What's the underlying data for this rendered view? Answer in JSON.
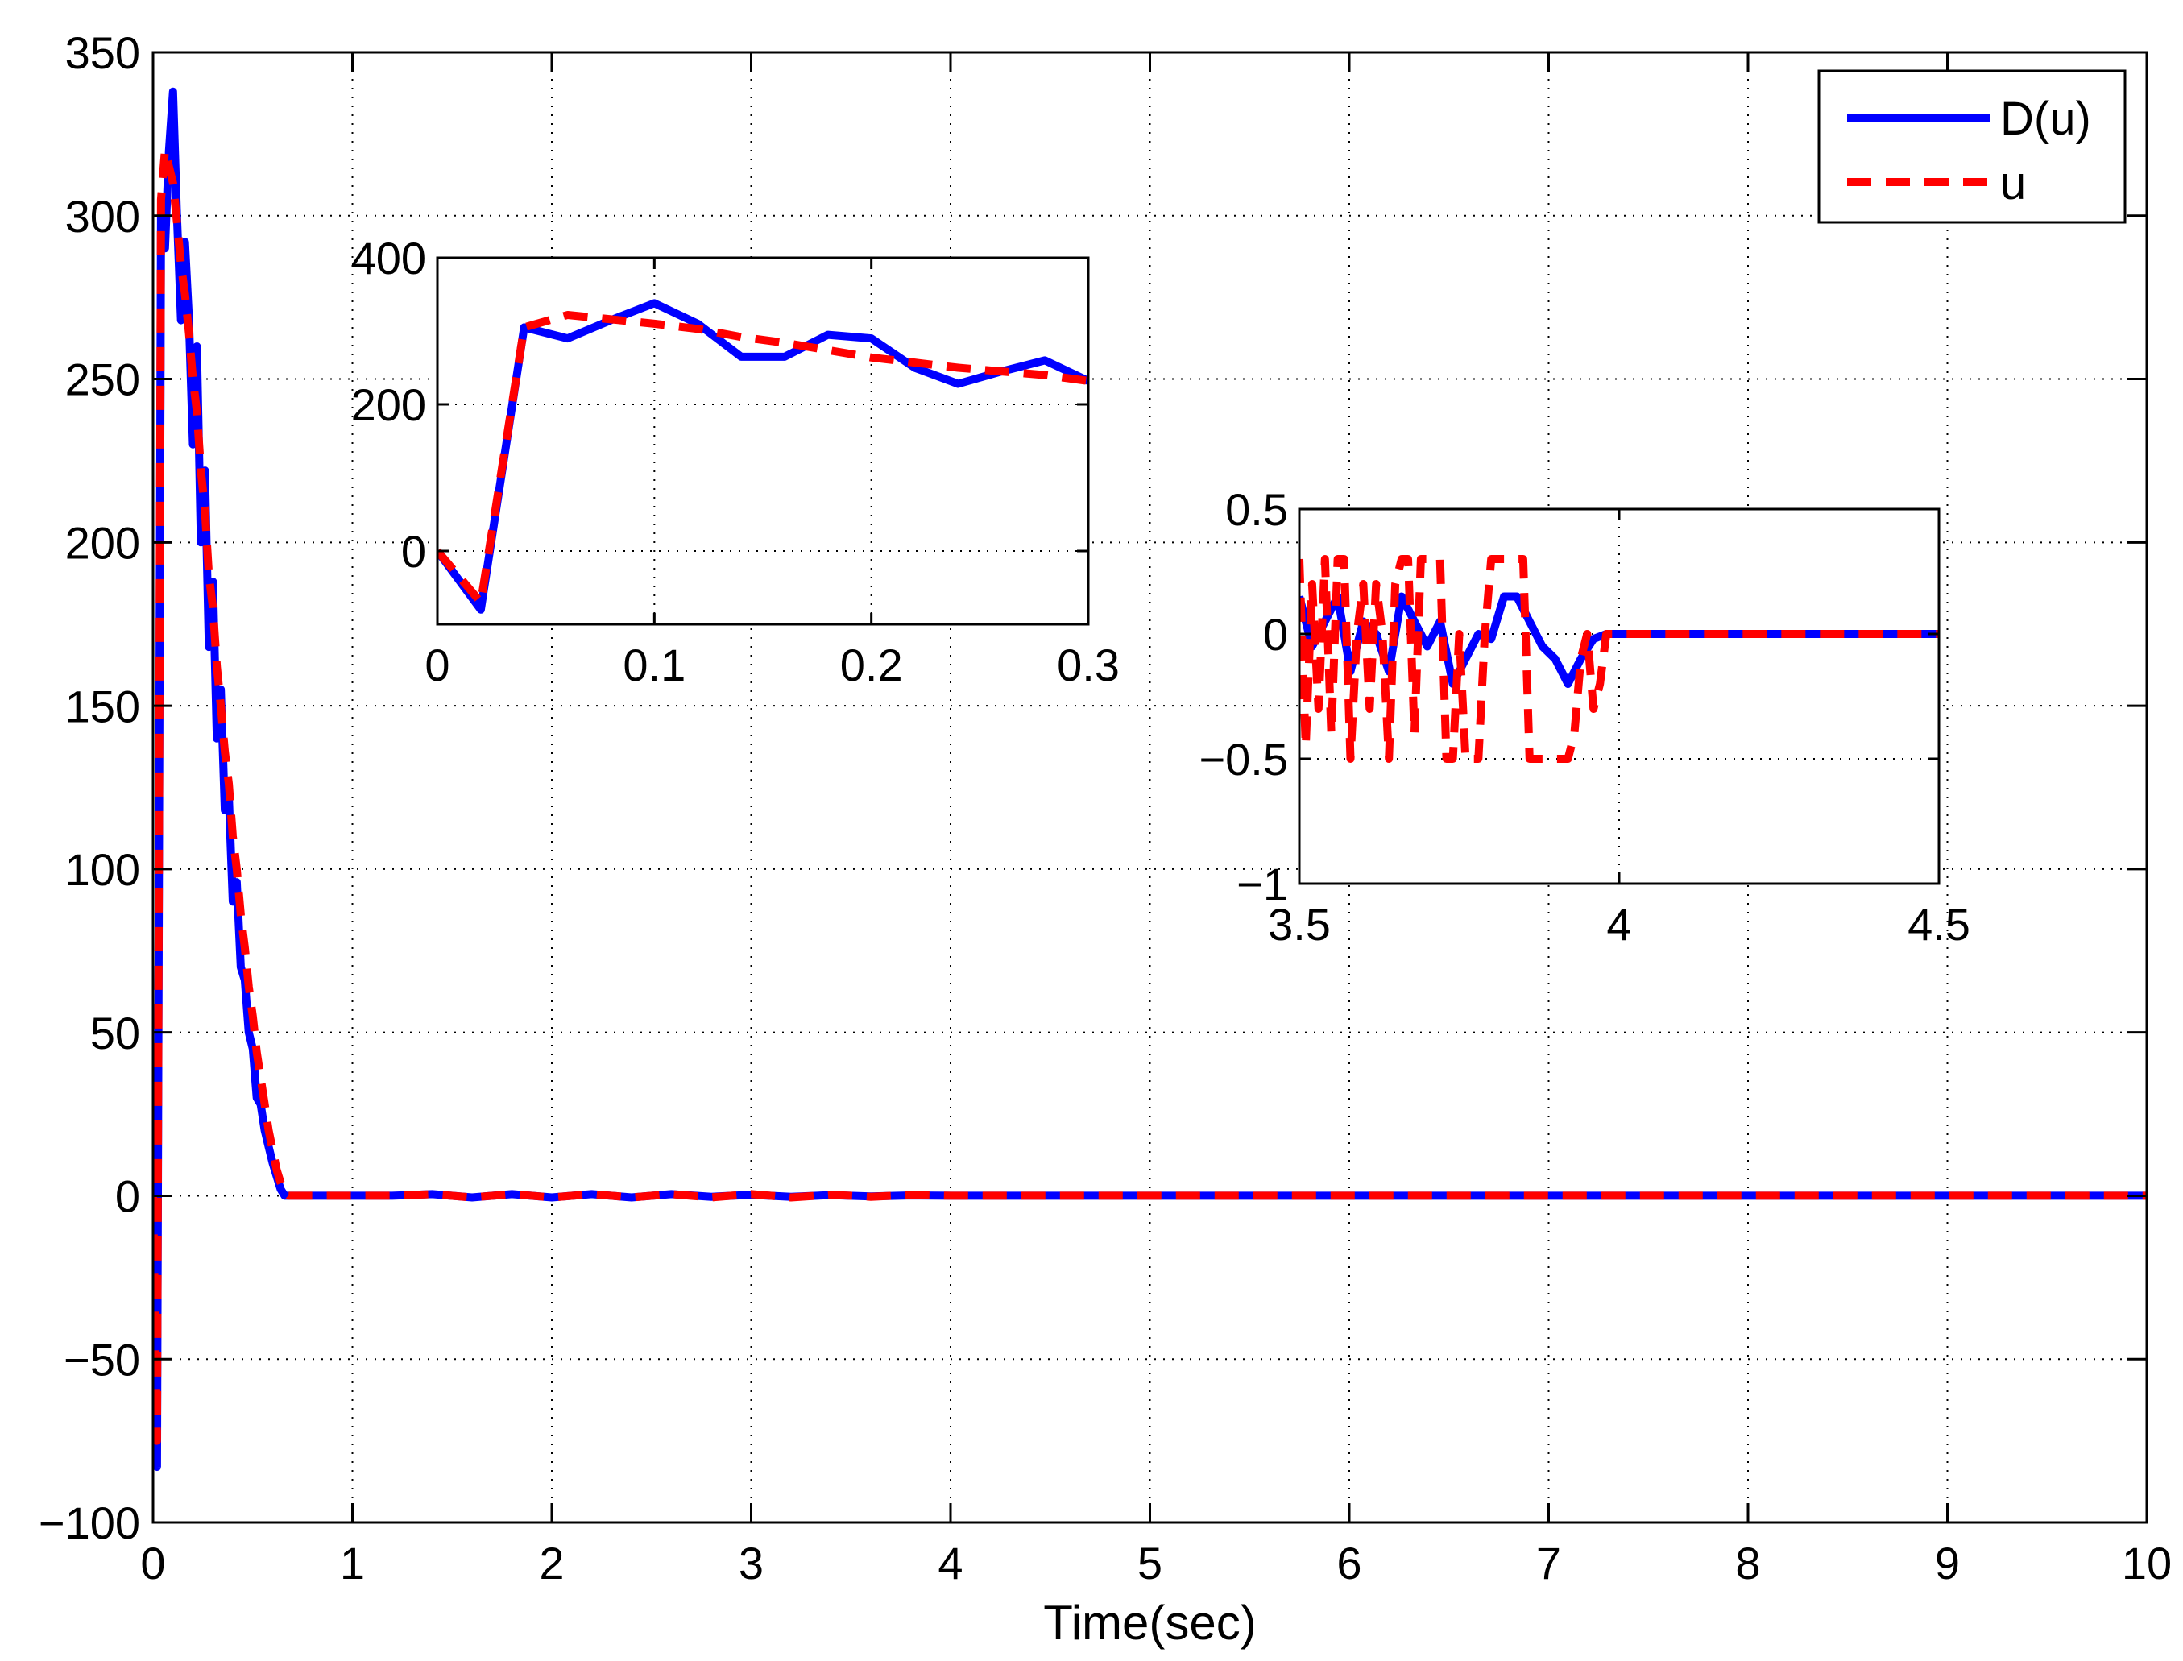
{
  "chart_data": [
    {
      "type": "line",
      "role": "main",
      "title": "",
      "xlabel": "Time(sec)",
      "ylabel": "",
      "xlim": [
        0,
        10
      ],
      "ylim": [
        -100,
        350
      ],
      "xticks": [
        0,
        1,
        2,
        3,
        4,
        5,
        6,
        7,
        8,
        9,
        10
      ],
      "yticks": [
        -100,
        -50,
        0,
        50,
        100,
        150,
        200,
        250,
        300,
        350
      ],
      "xtick_labels": [
        "0",
        "1",
        "2",
        "3",
        "4",
        "5",
        "6",
        "7",
        "8",
        "9",
        "10"
      ],
      "ytick_labels": [
        "−100",
        "−50",
        "0",
        "50",
        "100",
        "150",
        "200",
        "250",
        "300",
        "350"
      ],
      "grid": true,
      "legend_position": "top-right",
      "series": [
        {
          "name": "D(u)",
          "color": "#0000ff",
          "style": "solid",
          "x": [
            0,
            0.02,
            0.04,
            0.06,
            0.08,
            0.1,
            0.12,
            0.14,
            0.16,
            0.18,
            0.2,
            0.22,
            0.24,
            0.26,
            0.28,
            0.3,
            0.32,
            0.34,
            0.36,
            0.38,
            0.4,
            0.42,
            0.44,
            0.46,
            0.48,
            0.5,
            0.52,
            0.54,
            0.56,
            0.58,
            0.6,
            0.62,
            0.64,
            0.66,
            0.68,
            0.7,
            0.72,
            0.74,
            0.76,
            0.78,
            0.8,
            0.82,
            0.84,
            0.86,
            0.88,
            0.9,
            0.92,
            0.94,
            0.96,
            0.98,
            1.0,
            1.02,
            1.04,
            1.06,
            1.08,
            1.1,
            1.12,
            1.14,
            1.2,
            1.4,
            1.6,
            1.8,
            2.0,
            2.2,
            2.4,
            2.6,
            2.8,
            3.0,
            3.2,
            3.4,
            3.6,
            3.8,
            4.0,
            5.0,
            6.0,
            7.0,
            8.0,
            9.0,
            10.0
          ],
          "values": [
            0,
            -83,
            300,
            290,
            320,
            338,
            300,
            268,
            292,
            268,
            230,
            260,
            200,
            222,
            168,
            188,
            140,
            155,
            118,
            122,
            90,
            96,
            70,
            66,
            50,
            45,
            30,
            28,
            20,
            15,
            10,
            6,
            2,
            0,
            0,
            0,
            0,
            0,
            0,
            0,
            0,
            0,
            0,
            0,
            0,
            0,
            0,
            0,
            0,
            0,
            0,
            0,
            0,
            0,
            0,
            0,
            0,
            0,
            0,
            0.5,
            -0.5,
            0.5,
            -0.5,
            0.5,
            -0.5,
            0.5,
            -0.3,
            0.3,
            -0.3,
            0.2,
            -0.2,
            0.1,
            0,
            0,
            0,
            0,
            0,
            0,
            0
          ]
        },
        {
          "name": "u",
          "color": "#ff0000",
          "style": "dashed",
          "x": [
            0,
            0.02,
            0.04,
            0.06,
            0.08,
            0.1,
            0.12,
            0.14,
            0.16,
            0.18,
            0.2,
            0.22,
            0.24,
            0.26,
            0.28,
            0.3,
            0.32,
            0.34,
            0.36,
            0.38,
            0.4,
            0.42,
            0.44,
            0.46,
            0.48,
            0.5,
            0.52,
            0.54,
            0.56,
            0.58,
            0.6,
            0.62,
            0.64,
            0.66,
            0.68,
            0.7,
            0.72,
            0.74,
            0.76,
            0.78,
            0.8,
            0.82,
            0.84,
            0.86,
            0.88,
            0.9,
            0.92,
            0.94,
            0.96,
            0.98,
            1.0,
            1.02,
            1.04,
            1.06,
            1.08,
            1.1,
            1.12,
            1.14,
            1.2,
            1.4,
            1.6,
            1.8,
            2.0,
            2.2,
            2.4,
            2.6,
            2.8,
            3.0,
            3.2,
            3.4,
            3.6,
            3.8,
            4.0,
            5.0,
            6.0,
            7.0,
            8.0,
            9.0,
            10.0
          ],
          "values": [
            0,
            -75,
            305,
            320,
            315,
            310,
            298,
            285,
            276,
            264,
            250,
            240,
            222,
            210,
            190,
            180,
            162,
            150,
            136,
            126,
            110,
            100,
            86,
            76,
            64,
            55,
            44,
            36,
            28,
            20,
            14,
            8,
            4,
            1,
            0,
            0,
            0,
            0,
            0,
            0,
            0,
            0,
            0,
            0,
            0,
            0,
            0,
            0,
            0,
            0,
            0,
            0,
            0,
            0,
            0,
            0,
            0,
            0,
            0,
            0.5,
            -0.5,
            0.5,
            -0.5,
            0.5,
            -0.5,
            0.5,
            -0.5,
            0.5,
            -0.5,
            0.3,
            -0.3,
            0.3,
            0,
            0,
            0,
            0,
            0,
            0,
            0
          ]
        }
      ]
    },
    {
      "type": "line",
      "role": "inset",
      "xlim": [
        0,
        0.3
      ],
      "ylim": [
        -100,
        400
      ],
      "xticks": [
        0,
        0.1,
        0.2,
        0.3
      ],
      "yticks": [
        0,
        200,
        400
      ],
      "xtick_labels": [
        "0",
        "0.1",
        "0.2",
        "0.3"
      ],
      "ytick_labels": [
        "0",
        "200",
        "400"
      ],
      "grid": true,
      "series": [
        {
          "name": "D(u)",
          "color": "#0000ff",
          "style": "solid",
          "x": [
            0,
            0.02,
            0.04,
            0.06,
            0.08,
            0.1,
            0.12,
            0.14,
            0.16,
            0.18,
            0.2,
            0.22,
            0.24,
            0.26,
            0.28,
            0.3
          ],
          "values": [
            0,
            -80,
            305,
            290,
            315,
            338,
            310,
            265,
            265,
            295,
            290,
            250,
            228,
            245,
            260,
            232
          ]
        },
        {
          "name": "u",
          "color": "#ff0000",
          "style": "dashed",
          "x": [
            0,
            0.02,
            0.04,
            0.06,
            0.08,
            0.1,
            0.12,
            0.14,
            0.16,
            0.18,
            0.2,
            0.22,
            0.24,
            0.26,
            0.28,
            0.3
          ],
          "values": [
            0,
            -70,
            305,
            322,
            316,
            310,
            303,
            292,
            284,
            274,
            264,
            257,
            250,
            245,
            240,
            232
          ]
        }
      ]
    },
    {
      "type": "line",
      "role": "inset",
      "xlim": [
        3.5,
        4.5
      ],
      "ylim": [
        -1,
        0.5
      ],
      "xticks": [
        3.5,
        4,
        4.5
      ],
      "yticks": [
        -1,
        -0.5,
        0,
        0.5
      ],
      "xtick_labels": [
        "3.5",
        "4",
        "4.5"
      ],
      "ytick_labels": [
        "−1",
        "−0.5",
        "0",
        "0.5"
      ],
      "grid": true,
      "series": [
        {
          "name": "D(u)",
          "color": "#0000ff",
          "style": "solid",
          "x": [
            3.5,
            3.52,
            3.54,
            3.56,
            3.58,
            3.6,
            3.62,
            3.64,
            3.66,
            3.68,
            3.7,
            3.72,
            3.74,
            3.76,
            3.78,
            3.8,
            3.82,
            3.84,
            3.86,
            3.88,
            3.9,
            3.92,
            3.94,
            3.96,
            3.98,
            4.0,
            4.5
          ],
          "values": [
            0.15,
            -0.05,
            0.05,
            0.15,
            -0.15,
            0.05,
            0.0,
            -0.15,
            0.15,
            0.05,
            -0.05,
            0.05,
            -0.2,
            -0.1,
            0.0,
            -0.02,
            0.15,
            0.15,
            0.05,
            -0.05,
            -0.1,
            -0.2,
            -0.1,
            -0.02,
            0.0,
            0.0,
            0.0
          ]
        },
        {
          "name": "u",
          "color": "#ff0000",
          "style": "dashed",
          "x": [
            3.5,
            3.51,
            3.52,
            3.53,
            3.54,
            3.55,
            3.56,
            3.57,
            3.58,
            3.59,
            3.6,
            3.61,
            3.62,
            3.63,
            3.64,
            3.65,
            3.66,
            3.67,
            3.68,
            3.69,
            3.7,
            3.71,
            3.72,
            3.73,
            3.74,
            3.75,
            3.76,
            3.77,
            3.78,
            3.79,
            3.8,
            3.81,
            3.82,
            3.83,
            3.84,
            3.85,
            3.86,
            3.87,
            3.88,
            3.89,
            3.9,
            3.91,
            3.92,
            3.93,
            3.94,
            3.95,
            3.96,
            3.97,
            3.98,
            3.99,
            4.0,
            4.5
          ],
          "values": [
            0.3,
            -0.45,
            0.2,
            -0.3,
            0.3,
            -0.4,
            0.3,
            0.3,
            -0.5,
            0.0,
            0.2,
            -0.3,
            0.2,
            0.0,
            -0.5,
            0.2,
            0.3,
            0.3,
            -0.4,
            0.3,
            0.3,
            0.3,
            0.3,
            -0.5,
            -0.5,
            0.0,
            -0.5,
            -0.5,
            -0.5,
            0.0,
            0.3,
            0.3,
            0.3,
            0.3,
            0.3,
            0.3,
            -0.5,
            -0.5,
            -0.5,
            -0.5,
            -0.5,
            -0.5,
            -0.5,
            -0.4,
            -0.1,
            0.0,
            -0.3,
            -0.2,
            0.0,
            0.0,
            0.0,
            0.0
          ]
        }
      ]
    }
  ],
  "legend": {
    "items": [
      "D(u)",
      "u"
    ]
  }
}
